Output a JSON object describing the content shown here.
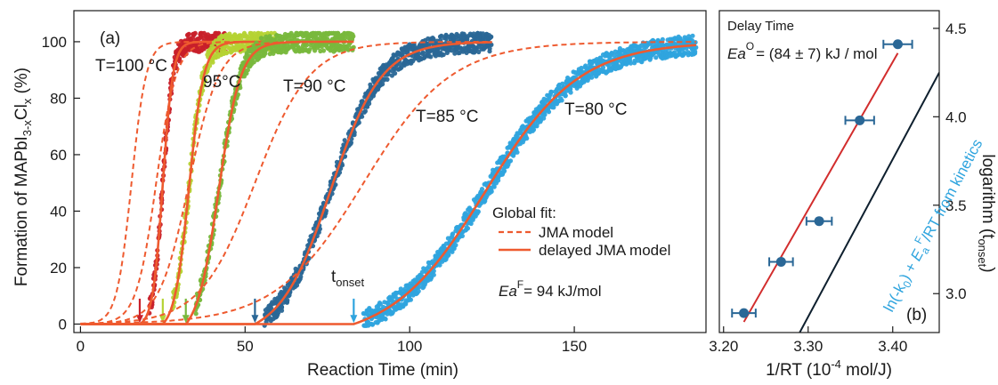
{
  "chart_data": [
    {
      "type": "scatter",
      "panel_label": "(a)",
      "xlabel": "Reaction Time (min)",
      "ylabel": "Formation of MAPbI3-xClx (%)",
      "xlim": [
        -2,
        190
      ],
      "ylim": [
        -3,
        111
      ],
      "x_ticks": [
        0,
        50,
        100,
        150
      ],
      "y_ticks": [
        0,
        20,
        40,
        60,
        80,
        100
      ],
      "colors": {
        "T100": "#c8202a",
        "T95": "#b5d334",
        "T90": "#78b83c",
        "T85": "#2a6796",
        "T80": "#2fa4de",
        "fit": "#ee5a2f"
      },
      "series": [
        {
          "name": "T=100 °C",
          "color_key": "T100",
          "t_onset": 18,
          "t_end": 44,
          "dashed_mid": 15.5,
          "dashed_k": 0.45,
          "solid_mid": 25,
          "solid_k": 0.65
        },
        {
          "name": "95°C",
          "color_key": "T95",
          "t_onset": 25,
          "t_end": 60,
          "dashed_mid": 23,
          "dashed_k": 0.33,
          "solid_mid": 33,
          "solid_k": 0.45
        },
        {
          "name": "T=90 °C",
          "color_key": "T90",
          "t_onset": 32,
          "t_end": 83,
          "dashed_mid": 33,
          "dashed_k": 0.22,
          "solid_mid": 42,
          "solid_k": 0.3
        },
        {
          "name": "T=85 °C",
          "color_key": "T85",
          "t_onset": 53,
          "t_end": 125,
          "dashed_mid": 53,
          "dashed_k": 0.12,
          "solid_mid": 76,
          "solid_k": 0.13
        },
        {
          "name": "T=80 °C",
          "color_key": "T80",
          "t_onset": 83,
          "t_end": 187,
          "dashed_mid": 86,
          "dashed_k": 0.075,
          "solid_mid": 123,
          "solid_k": 0.07
        }
      ],
      "legend": {
        "title": "Global fit:",
        "entries": [
          "JMA model",
          "delayed JMA model"
        ]
      },
      "annotations": {
        "t_onset": "tonset",
        "ea_f": "Ea",
        "ea_f_sup": "F",
        "ea_f_value": "= 94 kJ/mol"
      }
    },
    {
      "type": "scatter",
      "panel_label": "(b)",
      "title": "Delay Time",
      "xlabel": "1/RT (10-4 mol/J)",
      "ylabel": "logarithm (tonset)",
      "xlim": [
        3.195,
        3.455
      ],
      "ylim": [
        2.78,
        4.6
      ],
      "x_ticks": [
        3.2,
        3.3,
        3.4
      ],
      "x_tick_labels": [
        "3.20",
        "3.30",
        "3.40"
      ],
      "y_ticks": [
        3.0,
        3.5,
        4.0,
        4.5
      ],
      "y_tick_labels": [
        "3.0",
        "3.5",
        "4.0",
        "4.5"
      ],
      "points": [
        {
          "x": 3.224,
          "y": 2.89,
          "xerr": 0.014
        },
        {
          "x": 3.268,
          "y": 3.18,
          "xerr": 0.014
        },
        {
          "x": 3.313,
          "y": 3.41,
          "xerr": 0.015
        },
        {
          "x": 3.361,
          "y": 3.98,
          "xerr": 0.017
        },
        {
          "x": 3.406,
          "y": 4.41,
          "xerr": 0.017
        }
      ],
      "point_color": "#2a6796",
      "fit_line": {
        "x": [
          3.224,
          3.406
        ],
        "y": [
          2.84,
          4.36
        ],
        "color": "#d22d2d"
      },
      "reference_line": {
        "x": [
          3.29,
          3.455
        ],
        "y": [
          2.78,
          4.25
        ],
        "color": "#0e1f2e",
        "label": "ln(-k0) + EaF/RT from kinetics",
        "label_color": "#2fa4de"
      },
      "annotation": {
        "ea_o": "Ea",
        "ea_o_sup": "O",
        "ea_o_value": "= (84 ± 7) kJ / mol"
      }
    }
  ]
}
